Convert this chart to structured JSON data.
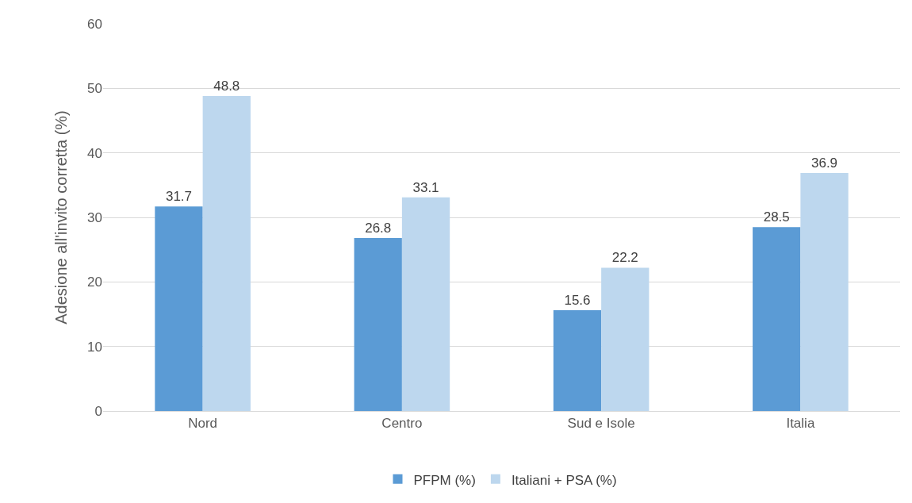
{
  "chart_data": {
    "type": "bar",
    "ylabel": "Adesione all'invito corretta (%)",
    "categories": [
      "Nord",
      "Centro",
      "Sud e Isole",
      "Italia"
    ],
    "series": [
      {
        "name": "PFPM (%)",
        "color": "#5b9bd5",
        "values": [
          31.7,
          26.8,
          15.6,
          28.5
        ]
      },
      {
        "name": "Italiani + PSA (%)",
        "color": "#bdd7ee",
        "values": [
          48.8,
          33.1,
          22.2,
          36.9
        ]
      }
    ],
    "ylim": [
      0,
      60
    ],
    "yticks": [
      0,
      10,
      20,
      30,
      40,
      50,
      60
    ],
    "grid": "y",
    "legend": "bottom",
    "data_labels": true
  }
}
